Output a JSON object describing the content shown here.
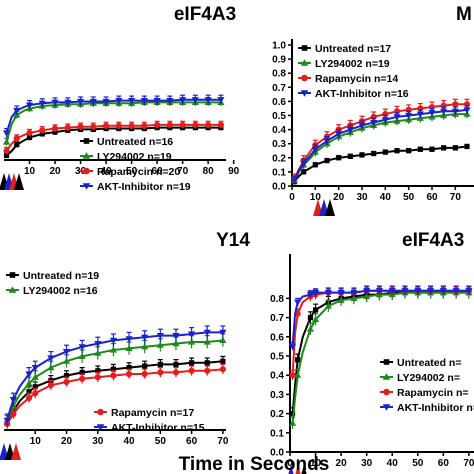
{
  "figure": {
    "xlabel": "Time in Seconds"
  },
  "colors": {
    "untreated": "#000000",
    "ly294002": "#1e8a1e",
    "rapamycin": "#e0201f",
    "akt": "#1a22c8"
  },
  "chart_data": [
    {
      "id": "a",
      "type": "line",
      "title": "eIF4A3",
      "xlim": [
        0,
        87
      ],
      "xticks": [
        10,
        20,
        30,
        40,
        50,
        60,
        70,
        80,
        90
      ],
      "ylim": [
        0,
        1.0
      ],
      "grid": false,
      "legend_position": "bottom-right",
      "series": [
        {
          "name": "Untreated n=16",
          "color": "#000000",
          "marker": "square",
          "x": [
            1,
            3,
            5,
            8,
            10,
            15,
            20,
            25,
            30,
            35,
            40,
            45,
            50,
            55,
            60,
            65,
            70,
            75,
            80,
            85
          ],
          "y": [
            0.05,
            0.1,
            0.17,
            0.22,
            0.25,
            0.29,
            0.31,
            0.33,
            0.34,
            0.34,
            0.35,
            0.35,
            0.35,
            0.35,
            0.36,
            0.36,
            0.36,
            0.36,
            0.36,
            0.36
          ],
          "err": 0.03
        },
        {
          "name": "LY294002 n=19",
          "color": "#1e8a1e",
          "marker": "triangle",
          "x": [
            1,
            3,
            5,
            8,
            10,
            15,
            20,
            25,
            30,
            35,
            40,
            45,
            50,
            55,
            60,
            65,
            70,
            75,
            80,
            85
          ],
          "y": [
            0.2,
            0.4,
            0.5,
            0.55,
            0.57,
            0.6,
            0.61,
            0.62,
            0.62,
            0.63,
            0.63,
            0.63,
            0.63,
            0.64,
            0.64,
            0.64,
            0.64,
            0.64,
            0.64,
            0.64
          ],
          "err": 0.04
        },
        {
          "name": "Rapamycin n=20",
          "color": "#e0201f",
          "marker": "circle",
          "x": [
            1,
            3,
            5,
            8,
            10,
            15,
            20,
            25,
            30,
            35,
            40,
            45,
            50,
            55,
            60,
            65,
            70,
            75,
            80,
            85
          ],
          "y": [
            0.1,
            0.18,
            0.24,
            0.28,
            0.3,
            0.33,
            0.35,
            0.36,
            0.37,
            0.37,
            0.38,
            0.38,
            0.38,
            0.38,
            0.39,
            0.39,
            0.39,
            0.39,
            0.39,
            0.39
          ],
          "err": 0.04
        },
        {
          "name": "AKT-Inhibitor n=19",
          "color": "#1a22c8",
          "marker": "triangle-down",
          "x": [
            1,
            3,
            5,
            8,
            10,
            15,
            20,
            25,
            30,
            35,
            40,
            45,
            50,
            55,
            60,
            65,
            70,
            75,
            80,
            85
          ],
          "y": [
            0.3,
            0.48,
            0.55,
            0.59,
            0.61,
            0.63,
            0.64,
            0.64,
            0.65,
            0.65,
            0.65,
            0.66,
            0.66,
            0.66,
            0.66,
            0.66,
            0.67,
            0.67,
            0.67,
            0.67
          ],
          "err": 0.05
        }
      ]
    },
    {
      "id": "b",
      "type": "line",
      "title": "M",
      "xlim": [
        0,
        78
      ],
      "xticks": [
        0,
        10,
        20,
        30,
        40,
        50,
        60,
        70,
        80
      ],
      "ylim": [
        0,
        1.0
      ],
      "yticks": [
        0.0,
        0.1,
        0.2,
        0.3,
        0.4,
        0.5,
        0.6,
        0.7,
        0.8,
        0.9,
        1.0
      ],
      "grid": false,
      "legend_position": "top-left",
      "series": [
        {
          "name": "Untreated n=17",
          "color": "#000000",
          "marker": "square",
          "x": [
            1,
            3,
            5,
            8,
            10,
            15,
            20,
            25,
            30,
            35,
            40,
            45,
            50,
            55,
            60,
            65,
            70,
            75
          ],
          "y": [
            0.03,
            0.07,
            0.1,
            0.13,
            0.15,
            0.18,
            0.2,
            0.21,
            0.22,
            0.23,
            0.24,
            0.25,
            0.25,
            0.26,
            0.26,
            0.27,
            0.27,
            0.28
          ],
          "err": 0.015
        },
        {
          "name": "LY294002 n=19",
          "color": "#1e8a1e",
          "marker": "triangle",
          "x": [
            1,
            3,
            5,
            8,
            10,
            15,
            20,
            25,
            30,
            35,
            40,
            45,
            50,
            55,
            60,
            65,
            70,
            75
          ],
          "y": [
            0.04,
            0.1,
            0.15,
            0.2,
            0.24,
            0.3,
            0.35,
            0.38,
            0.41,
            0.43,
            0.45,
            0.46,
            0.47,
            0.48,
            0.49,
            0.5,
            0.51,
            0.51
          ],
          "err": 0.03
        },
        {
          "name": "Rapamycin n=14",
          "color": "#e0201f",
          "marker": "circle",
          "x": [
            1,
            3,
            5,
            8,
            10,
            15,
            20,
            25,
            30,
            35,
            40,
            45,
            50,
            55,
            60,
            65,
            70,
            75
          ],
          "y": [
            0.05,
            0.12,
            0.18,
            0.25,
            0.29,
            0.35,
            0.4,
            0.43,
            0.46,
            0.49,
            0.51,
            0.53,
            0.54,
            0.55,
            0.56,
            0.57,
            0.58,
            0.58
          ],
          "err": 0.035
        },
        {
          "name": "AKT-Inhibitor n=16",
          "color": "#1a22c8",
          "marker": "triangle-down",
          "x": [
            1,
            3,
            5,
            8,
            10,
            15,
            20,
            25,
            30,
            35,
            40,
            45,
            50,
            55,
            60,
            65,
            70,
            75
          ],
          "y": [
            0.04,
            0.11,
            0.16,
            0.22,
            0.26,
            0.32,
            0.37,
            0.4,
            0.43,
            0.45,
            0.47,
            0.49,
            0.5,
            0.51,
            0.52,
            0.53,
            0.53,
            0.54
          ],
          "err": 0.03
        }
      ]
    },
    {
      "id": "c",
      "type": "line",
      "title": "Y14",
      "xlim": [
        0,
        71
      ],
      "xticks": [
        10,
        20,
        30,
        40,
        50,
        60,
        70
      ],
      "ylim": [
        0,
        1.0
      ],
      "grid": false,
      "legend_position": "split",
      "series": [
        {
          "name": "Untreated n=19",
          "color": "#000000",
          "marker": "square",
          "x": [
            1,
            2,
            3,
            5,
            8,
            10,
            15,
            20,
            25,
            30,
            35,
            40,
            45,
            50,
            55,
            60,
            65,
            70
          ],
          "y": [
            0.04,
            0.08,
            0.12,
            0.18,
            0.24,
            0.27,
            0.31,
            0.34,
            0.36,
            0.37,
            0.38,
            0.39,
            0.4,
            0.41,
            0.41,
            0.42,
            0.42,
            0.43
          ],
          "err": 0.03
        },
        {
          "name": "LY294002 n=16",
          "color": "#1e8a1e",
          "marker": "triangle",
          "x": [
            1,
            2,
            3,
            5,
            8,
            10,
            15,
            20,
            25,
            30,
            35,
            40,
            45,
            50,
            55,
            60,
            65,
            70
          ],
          "y": [
            0.05,
            0.1,
            0.15,
            0.22,
            0.29,
            0.33,
            0.39,
            0.43,
            0.46,
            0.48,
            0.5,
            0.51,
            0.52,
            0.53,
            0.54,
            0.55,
            0.55,
            0.56
          ],
          "err": 0.04
        },
        {
          "name": "Rapamycin n=17",
          "color": "#e0201f",
          "marker": "circle",
          "x": [
            1,
            2,
            3,
            5,
            8,
            10,
            15,
            20,
            25,
            30,
            35,
            40,
            45,
            50,
            55,
            60,
            65,
            70
          ],
          "y": [
            0.04,
            0.07,
            0.1,
            0.15,
            0.2,
            0.23,
            0.28,
            0.3,
            0.32,
            0.33,
            0.34,
            0.35,
            0.35,
            0.36,
            0.36,
            0.37,
            0.37,
            0.38
          ],
          "err": 0.03
        },
        {
          "name": "AKT-Inhibitor n=15",
          "color": "#1a22c8",
          "marker": "triangle-down",
          "x": [
            1,
            2,
            3,
            5,
            8,
            10,
            15,
            20,
            25,
            30,
            35,
            40,
            45,
            50,
            55,
            60,
            65,
            70
          ],
          "y": [
            0.06,
            0.13,
            0.19,
            0.27,
            0.35,
            0.39,
            0.45,
            0.49,
            0.52,
            0.54,
            0.56,
            0.57,
            0.58,
            0.59,
            0.59,
            0.6,
            0.61,
            0.61
          ],
          "err": 0.04
        }
      ]
    },
    {
      "id": "d",
      "type": "line",
      "title": "eIF4A3",
      "xlim": [
        0,
        72
      ],
      "xticks": [
        0,
        10,
        20,
        30,
        40,
        50,
        60,
        70
      ],
      "ylim": [
        0,
        1.0
      ],
      "yticks": [
        0.0,
        0.1,
        0.2,
        0.3,
        0.4,
        0.5,
        0.6,
        0.7,
        0.8
      ],
      "grid": false,
      "legend_position": "bottom-right",
      "series": [
        {
          "name": "Untreated n=",
          "color": "#000000",
          "marker": "square",
          "x": [
            1,
            2,
            3,
            5,
            8,
            10,
            15,
            20,
            25,
            30,
            35,
            40,
            45,
            50,
            55,
            60,
            65,
            70
          ],
          "y": [
            0.2,
            0.35,
            0.48,
            0.6,
            0.7,
            0.74,
            0.78,
            0.8,
            0.81,
            0.82,
            0.82,
            0.83,
            0.83,
            0.83,
            0.83,
            0.83,
            0.83,
            0.83
          ],
          "err": 0.03
        },
        {
          "name": "LY294002 n=",
          "color": "#1e8a1e",
          "marker": "triangle",
          "x": [
            1,
            2,
            3,
            5,
            8,
            10,
            15,
            20,
            25,
            30,
            35,
            40,
            45,
            50,
            55,
            60,
            65,
            70
          ],
          "y": [
            0.15,
            0.28,
            0.4,
            0.52,
            0.64,
            0.69,
            0.76,
            0.79,
            0.8,
            0.81,
            0.82,
            0.82,
            0.83,
            0.83,
            0.83,
            0.83,
            0.83,
            0.83
          ],
          "err": 0.03
        },
        {
          "name": "Rapamycin n=",
          "color": "#e0201f",
          "marker": "circle",
          "x": [
            1,
            2,
            3,
            5,
            8,
            10,
            15,
            20,
            25,
            30,
            35,
            40,
            45,
            50,
            55,
            60,
            65,
            70
          ],
          "y": [
            0.4,
            0.62,
            0.72,
            0.78,
            0.81,
            0.82,
            0.83,
            0.83,
            0.83,
            0.84,
            0.84,
            0.84,
            0.84,
            0.84,
            0.84,
            0.84,
            0.84,
            0.84
          ],
          "err": 0.025
        },
        {
          "name": "AKT-Inhibitor n=",
          "color": "#1a22c8",
          "marker": "triangle-down",
          "x": [
            1,
            2,
            3,
            5,
            8,
            10,
            15,
            20,
            25,
            30,
            35,
            40,
            45,
            50,
            55,
            60,
            65,
            70
          ],
          "y": [
            0.55,
            0.72,
            0.78,
            0.81,
            0.82,
            0.83,
            0.83,
            0.83,
            0.83,
            0.84,
            0.84,
            0.84,
            0.84,
            0.84,
            0.84,
            0.84,
            0.84,
            0.84
          ],
          "err": 0.02
        }
      ]
    }
  ]
}
